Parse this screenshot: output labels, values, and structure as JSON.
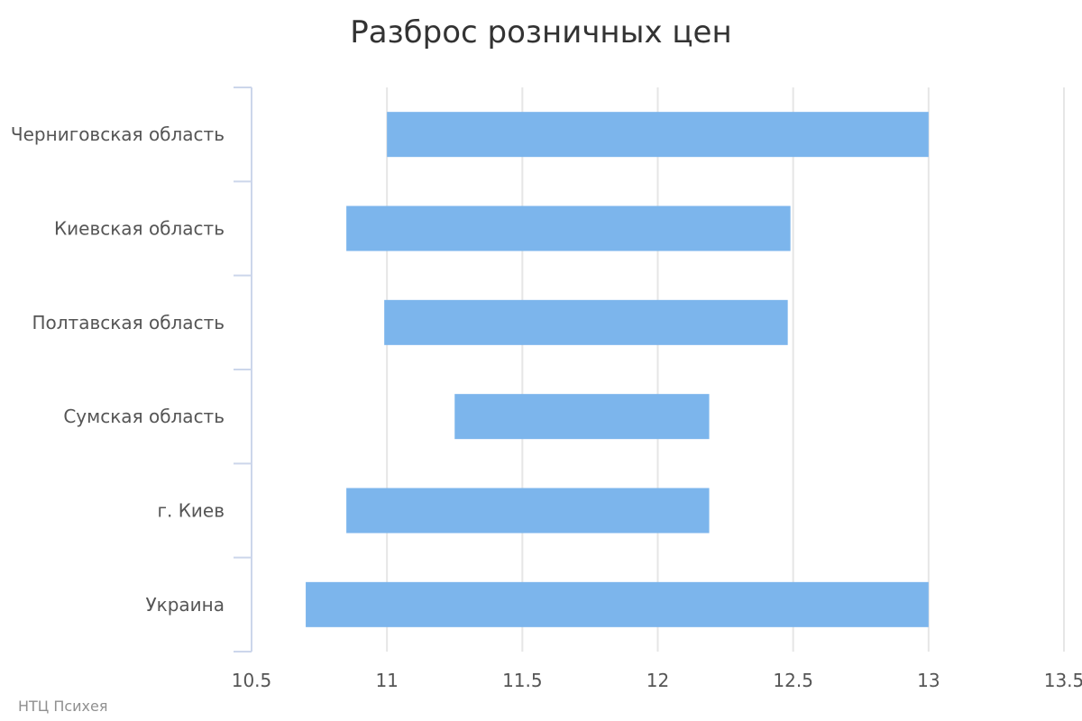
{
  "chart_data": {
    "type": "bar",
    "orientation": "horizontal",
    "chart_subtype": "floating-range",
    "title": "Разброс розничных цен",
    "categories": [
      "Черниговская область",
      "Киевская область",
      "Полтавская область",
      "Сумская область",
      "г. Киев",
      "Украина"
    ],
    "series": [
      {
        "ranges": [
          [
            11.0,
            13.0
          ],
          [
            10.85,
            12.49
          ],
          [
            10.99,
            12.48
          ],
          [
            11.25,
            12.19
          ],
          [
            10.85,
            12.19
          ],
          [
            10.7,
            13.0
          ]
        ]
      }
    ],
    "xlim": [
      10.5,
      13.5
    ],
    "xticks": [
      10.5,
      11,
      11.5,
      12,
      12.5,
      13,
      13.5
    ],
    "xtick_labels": [
      "10.5",
      "11",
      "11.5",
      "12",
      "12.5",
      "13",
      "13.5"
    ],
    "grid": true,
    "legend": "none",
    "bar_color": "#7cb5ec"
  },
  "credits": "НТЦ Психея"
}
